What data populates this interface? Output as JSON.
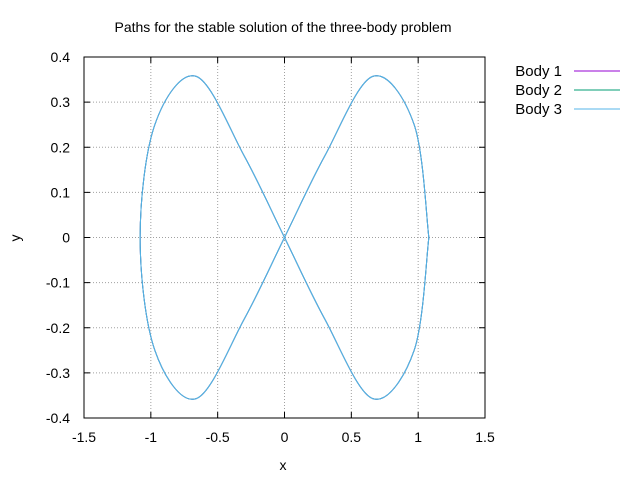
{
  "chart_data": {
    "type": "line",
    "title": "Paths for the stable solution of the three-body problem",
    "xlabel": "x",
    "ylabel": "y",
    "xlim": [
      -1.5,
      1.5
    ],
    "ylim": [
      -0.4,
      0.4
    ],
    "xticks": [
      "-1.5",
      "-1",
      "-0.5",
      "0",
      "0.5",
      "1",
      "1.5"
    ],
    "yticks": [
      "0.4",
      "0.3",
      "0.2",
      "0.1",
      "0",
      "-0.1",
      "-0.2",
      "-0.3",
      "-0.4"
    ],
    "grid": true,
    "legend_position": "outside-top-right",
    "series": [
      {
        "name": "Body 1",
        "color": "#9400d3",
        "x": [
          1.08,
          0.97,
          0.66,
          0.3,
          0.0,
          -0.3,
          -0.66,
          -0.97,
          -1.08,
          -0.97,
          -0.66,
          -0.3,
          0.0,
          0.3,
          0.66,
          0.97,
          1.08
        ],
        "y": [
          0.0,
          0.25,
          0.357,
          0.18,
          0.0,
          -0.18,
          -0.357,
          -0.25,
          0.0,
          0.25,
          0.357,
          0.18,
          0.0,
          -0.18,
          -0.357,
          -0.25,
          0.0
        ]
      },
      {
        "name": "Body 2",
        "color": "#009e73",
        "x": [
          1.08,
          0.97,
          0.66,
          0.3,
          0.0,
          -0.3,
          -0.66,
          -0.97,
          -1.08,
          -0.97,
          -0.66,
          -0.3,
          0.0,
          0.3,
          0.66,
          0.97,
          1.08
        ],
        "y": [
          0.0,
          0.25,
          0.357,
          0.18,
          0.0,
          -0.18,
          -0.357,
          -0.25,
          0.0,
          0.25,
          0.357,
          0.18,
          0.0,
          -0.18,
          -0.357,
          -0.25,
          0.0
        ]
      },
      {
        "name": "Body 3",
        "color": "#56b4e9",
        "x": [
          1.08,
          0.97,
          0.66,
          0.3,
          0.0,
          -0.3,
          -0.66,
          -0.97,
          -1.08,
          -0.97,
          -0.66,
          -0.3,
          0.0,
          0.3,
          0.66,
          0.97,
          1.08
        ],
        "y": [
          0.0,
          0.25,
          0.357,
          0.18,
          0.0,
          -0.18,
          -0.357,
          -0.25,
          0.0,
          0.25,
          0.357,
          0.18,
          0.0,
          -0.18,
          -0.357,
          -0.25,
          0.0
        ]
      }
    ]
  }
}
